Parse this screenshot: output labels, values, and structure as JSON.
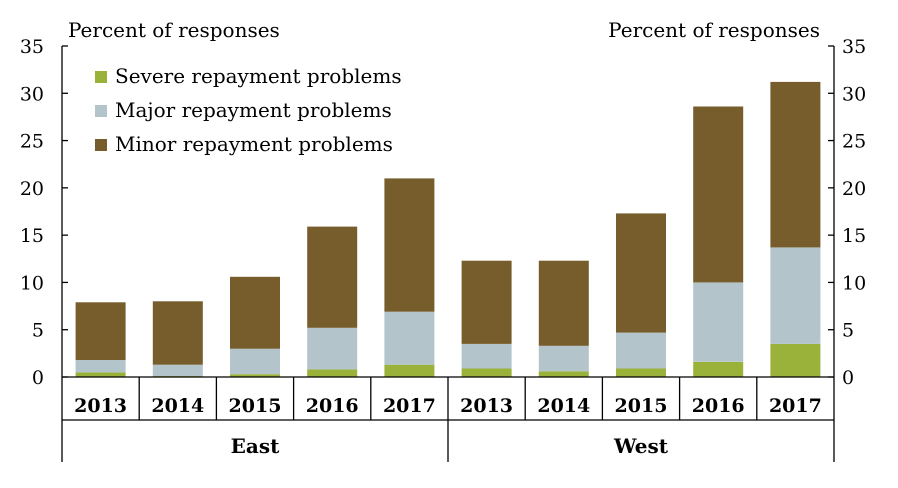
{
  "chart_data": {
    "type": "bar",
    "stacked": true,
    "left_axis_label": "Percent of responses",
    "right_axis_label": "Percent of responses",
    "ylim": [
      0,
      35
    ],
    "yticks": [
      0,
      5,
      10,
      15,
      20,
      25,
      30,
      35
    ],
    "ytick_labels": [
      "0",
      "5",
      "10",
      "15",
      "20",
      "25",
      "30",
      "35"
    ],
    "groups": [
      {
        "label": "East",
        "categories": [
          "2013",
          "2014",
          "2015",
          "2016",
          "2017"
        ]
      },
      {
        "label": "West",
        "categories": [
          "2013",
          "2014",
          "2015",
          "2016",
          "2017"
        ]
      }
    ],
    "series": [
      {
        "name": "Severe repayment problems",
        "color": "#9bb23a",
        "values": [
          0.5,
          0.1,
          0.3,
          0.8,
          1.3,
          0.9,
          0.6,
          0.9,
          1.6,
          3.5
        ]
      },
      {
        "name": "Major repayment problems",
        "color": "#b3c4cb",
        "values": [
          1.3,
          1.2,
          2.7,
          4.4,
          5.6,
          2.6,
          2.7,
          3.8,
          8.4,
          10.2
        ]
      },
      {
        "name": "Minor repayment problems",
        "color": "#765d2b",
        "values": [
          6.1,
          6.7,
          7.6,
          10.7,
          14.1,
          8.8,
          9.0,
          12.6,
          18.6,
          17.5
        ]
      }
    ],
    "legend": "top-left",
    "grid": false
  }
}
